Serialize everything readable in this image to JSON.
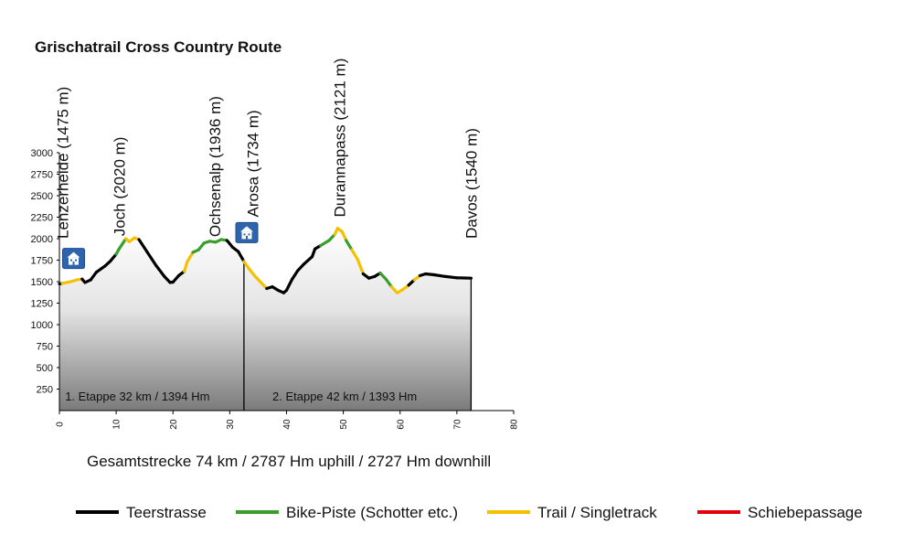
{
  "chart_data": {
    "type": "line",
    "title": "Grischatrail Cross Country Route",
    "xlim": [
      0,
      80
    ],
    "ylim": [
      0,
      3000
    ],
    "x_ticks": [
      "0",
      "10",
      "20",
      "30",
      "40",
      "50",
      "60",
      "70",
      "80"
    ],
    "y_ticks": [
      "250",
      "500",
      "750",
      "1000",
      "1250",
      "1500",
      "1750",
      "2000",
      "2250",
      "2500",
      "2750",
      "3000"
    ],
    "legend_position": "bottom",
    "series": [
      {
        "name": "Teerstrasse",
        "color": "#000000"
      },
      {
        "name": "Bike-Piste (Schotter etc.)",
        "color": "#3a9e2c"
      },
      {
        "name": "Trail / Singletrack",
        "color": "#f5c000"
      },
      {
        "name": "Schiebepassage",
        "color": "#e3000b"
      }
    ],
    "profile": [
      {
        "x": 0.0,
        "y": 1475,
        "s": "Teerstrasse"
      },
      {
        "x": 0.5,
        "y": 1480,
        "s": "Trail / Singletrack"
      },
      {
        "x": 2.0,
        "y": 1500,
        "s": "Trail / Singletrack"
      },
      {
        "x": 3.0,
        "y": 1520,
        "s": "Trail / Singletrack"
      },
      {
        "x": 4.0,
        "y": 1530,
        "s": "Teerstrasse"
      },
      {
        "x": 4.5,
        "y": 1490,
        "s": "Teerstrasse"
      },
      {
        "x": 5.5,
        "y": 1520,
        "s": "Teerstrasse"
      },
      {
        "x": 6.5,
        "y": 1610,
        "s": "Teerstrasse"
      },
      {
        "x": 8.0,
        "y": 1680,
        "s": "Teerstrasse"
      },
      {
        "x": 9.0,
        "y": 1740,
        "s": "Teerstrasse"
      },
      {
        "x": 10.0,
        "y": 1820,
        "s": "Bike-Piste (Schotter etc.)"
      },
      {
        "x": 10.5,
        "y": 1880,
        "s": "Bike-Piste (Schotter etc.)"
      },
      {
        "x": 11.3,
        "y": 1960,
        "s": "Bike-Piste (Schotter etc.)"
      },
      {
        "x": 11.7,
        "y": 2000,
        "s": "Trail / Singletrack"
      },
      {
        "x": 12.3,
        "y": 1965,
        "s": "Trail / Singletrack"
      },
      {
        "x": 13.2,
        "y": 2010,
        "s": "Trail / Singletrack"
      },
      {
        "x": 14.0,
        "y": 1990,
        "s": "Teerstrasse"
      },
      {
        "x": 15.5,
        "y": 1840,
        "s": "Teerstrasse"
      },
      {
        "x": 17.0,
        "y": 1690,
        "s": "Teerstrasse"
      },
      {
        "x": 18.5,
        "y": 1560,
        "s": "Teerstrasse"
      },
      {
        "x": 19.5,
        "y": 1490,
        "s": "Teerstrasse"
      },
      {
        "x": 20.0,
        "y": 1495,
        "s": "Teerstrasse"
      },
      {
        "x": 21.0,
        "y": 1570,
        "s": "Teerstrasse"
      },
      {
        "x": 22.0,
        "y": 1620,
        "s": "Trail / Singletrack"
      },
      {
        "x": 22.5,
        "y": 1730,
        "s": "Trail / Singletrack"
      },
      {
        "x": 23.5,
        "y": 1840,
        "s": "Bike-Piste (Schotter etc.)"
      },
      {
        "x": 24.5,
        "y": 1870,
        "s": "Bike-Piste (Schotter etc.)"
      },
      {
        "x": 25.5,
        "y": 1950,
        "s": "Bike-Piste (Schotter etc.)"
      },
      {
        "x": 26.5,
        "y": 1970,
        "s": "Bike-Piste (Schotter etc.)"
      },
      {
        "x": 27.5,
        "y": 1960,
        "s": "Bike-Piste (Schotter etc.)"
      },
      {
        "x": 28.5,
        "y": 1990,
        "s": "Bike-Piste (Schotter etc.)"
      },
      {
        "x": 29.5,
        "y": 1980,
        "s": "Teerstrasse"
      },
      {
        "x": 30.5,
        "y": 1900,
        "s": "Teerstrasse"
      },
      {
        "x": 31.5,
        "y": 1850,
        "s": "Teerstrasse"
      },
      {
        "x": 32.5,
        "y": 1734,
        "s": "Trail / Singletrack"
      },
      {
        "x": 33.5,
        "y": 1640,
        "s": "Trail / Singletrack"
      },
      {
        "x": 34.5,
        "y": 1560,
        "s": "Trail / Singletrack"
      },
      {
        "x": 35.5,
        "y": 1490,
        "s": "Trail / Singletrack"
      },
      {
        "x": 36.5,
        "y": 1420,
        "s": "Teerstrasse"
      },
      {
        "x": 37.5,
        "y": 1440,
        "s": "Teerstrasse"
      },
      {
        "x": 38.5,
        "y": 1400,
        "s": "Teerstrasse"
      },
      {
        "x": 39.5,
        "y": 1370,
        "s": "Teerstrasse"
      },
      {
        "x": 40.0,
        "y": 1400,
        "s": "Teerstrasse"
      },
      {
        "x": 41.0,
        "y": 1530,
        "s": "Teerstrasse"
      },
      {
        "x": 42.0,
        "y": 1630,
        "s": "Teerstrasse"
      },
      {
        "x": 43.0,
        "y": 1700,
        "s": "Teerstrasse"
      },
      {
        "x": 44.5,
        "y": 1790,
        "s": "Teerstrasse"
      },
      {
        "x": 45.0,
        "y": 1880,
        "s": "Teerstrasse"
      },
      {
        "x": 46.0,
        "y": 1920,
        "s": "Bike-Piste (Schotter etc.)"
      },
      {
        "x": 47.5,
        "y": 1980,
        "s": "Bike-Piste (Schotter etc.)"
      },
      {
        "x": 48.5,
        "y": 2050,
        "s": "Trail / Singletrack"
      },
      {
        "x": 49.0,
        "y": 2121,
        "s": "Trail / Singletrack"
      },
      {
        "x": 49.8,
        "y": 2080,
        "s": "Trail / Singletrack"
      },
      {
        "x": 50.5,
        "y": 1980,
        "s": "Bike-Piste (Schotter etc.)"
      },
      {
        "x": 51.5,
        "y": 1870,
        "s": "Trail / Singletrack"
      },
      {
        "x": 52.5,
        "y": 1760,
        "s": "Trail / Singletrack"
      },
      {
        "x": 53.5,
        "y": 1590,
        "s": "Teerstrasse"
      },
      {
        "x": 54.5,
        "y": 1540,
        "s": "Teerstrasse"
      },
      {
        "x": 55.5,
        "y": 1560,
        "s": "Teerstrasse"
      },
      {
        "x": 56.5,
        "y": 1600,
        "s": "Bike-Piste (Schotter etc.)"
      },
      {
        "x": 57.5,
        "y": 1530,
        "s": "Bike-Piste (Schotter etc.)"
      },
      {
        "x": 58.5,
        "y": 1440,
        "s": "Trail / Singletrack"
      },
      {
        "x": 59.5,
        "y": 1370,
        "s": "Trail / Singletrack"
      },
      {
        "x": 60.5,
        "y": 1410,
        "s": "Trail / Singletrack"
      },
      {
        "x": 61.5,
        "y": 1460,
        "s": "Teerstrasse"
      },
      {
        "x": 62.5,
        "y": 1520,
        "s": "Trail / Singletrack"
      },
      {
        "x": 63.5,
        "y": 1570,
        "s": "Teerstrasse"
      },
      {
        "x": 64.5,
        "y": 1590,
        "s": "Teerstrasse"
      },
      {
        "x": 66.0,
        "y": 1580,
        "s": "Teerstrasse"
      },
      {
        "x": 68.0,
        "y": 1560,
        "s": "Teerstrasse"
      },
      {
        "x": 70.0,
        "y": 1545,
        "s": "Teerstrasse"
      },
      {
        "x": 72.5,
        "y": 1540,
        "s": null
      }
    ],
    "stage_end_x": 32.5,
    "route_end_x": 72.5,
    "locations": [
      {
        "label": "Lenzerheide (1475 m)",
        "x": 1.5,
        "y": 2000,
        "hotel": true
      },
      {
        "label": "Joch (2020 m)",
        "x": 11.5,
        "y": 2030,
        "hotel": false
      },
      {
        "label": "Ochsenalp (1936 m)",
        "x": 28.3,
        "y": 2020,
        "hotel": false
      },
      {
        "label": "Arosa (1734 m)",
        "x": 35.0,
        "y": 2250,
        "hotel": true
      },
      {
        "label": "Durannapass (2121 m)",
        "x": 50.3,
        "y": 2250,
        "hotel": false
      },
      {
        "label": "Davos (1540 m)",
        "x": 73.5,
        "y": 2000,
        "hotel": false
      }
    ],
    "hotel_icon": "hotel-icon",
    "hotel_markers": [
      {
        "x": 2.5,
        "y": 1770
      },
      {
        "x": 33.0,
        "y": 2070
      }
    ],
    "stages": [
      {
        "label": "1. Etappe 32 km / 1394 Hm",
        "x": 1.0
      },
      {
        "label": "2. Etappe 42 km / 1393 Hm",
        "x": 37.5
      }
    ],
    "summary": "Gesamtstrecke 74 km / 2787 Hm uphill /  2727 Hm downhill"
  }
}
